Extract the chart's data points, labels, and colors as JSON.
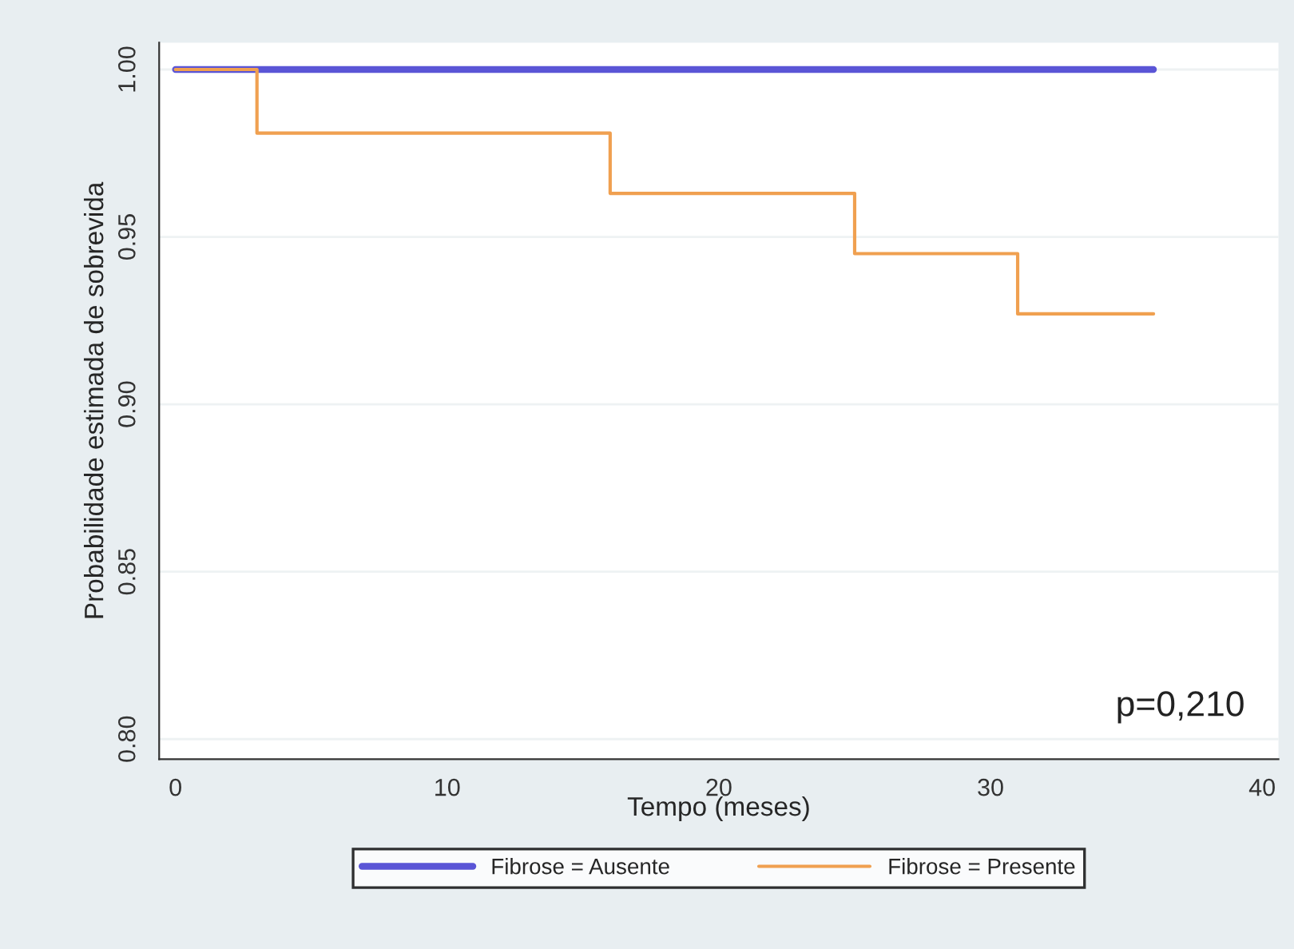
{
  "chart_data": {
    "type": "step",
    "xlabel": "Tempo (meses)",
    "ylabel": "Probabilidade estimada de sobrevida",
    "series": [
      {
        "name": "Fibrose = Ausente",
        "color": "#5a55d6",
        "x": [
          0,
          36
        ],
        "values": [
          1.0,
          1.0
        ]
      },
      {
        "name": "Fibrose = Presente",
        "color": "#f0a050",
        "x": [
          0,
          3,
          16,
          25,
          31,
          36
        ],
        "values": [
          1.0,
          0.981,
          0.963,
          0.945,
          0.927,
          0.927
        ]
      }
    ],
    "xlim": [
      -0.6,
      40.6
    ],
    "xticks": [
      0,
      10,
      20,
      30,
      40
    ],
    "ylim": [
      0.794,
      1.008
    ],
    "yticks": [
      {
        "value": 0.8,
        "label": "0.80"
      },
      {
        "value": 0.85,
        "label": "0.85"
      },
      {
        "value": 0.9,
        "label": "0.90"
      },
      {
        "value": 0.95,
        "label": "0.95"
      },
      {
        "value": 1.0,
        "label": "1.00"
      }
    ],
    "grid": "y",
    "legend": "bottom",
    "line_style": "solid",
    "marker": "none",
    "annotations": [
      "p=0,210"
    ]
  }
}
